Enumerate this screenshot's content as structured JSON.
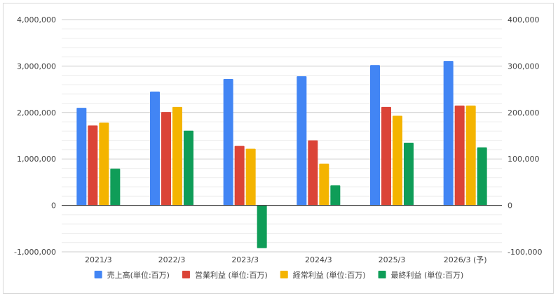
{
  "chart_data": {
    "type": "bar",
    "categories": [
      "2021/3",
      "2022/3",
      "2023/3",
      "2024/3",
      "2025/3",
      "2026/3 (予)"
    ],
    "series": [
      {
        "name": "売上高(単位:百万)",
        "axis": "left",
        "color": "#4285f4",
        "values": [
          2100000,
          2450000,
          2720000,
          2780000,
          3020000,
          3110000
        ]
      },
      {
        "name": "営業利益 (単位:百万)",
        "axis": "right",
        "color": "#db4437",
        "values": [
          172000,
          201000,
          128000,
          140000,
          212000,
          215000
        ]
      },
      {
        "name": "経常利益 (単位:百万)",
        "axis": "right",
        "color": "#f4b400",
        "values": [
          178000,
          212000,
          122000,
          90000,
          193000,
          215000
        ]
      },
      {
        "name": "最終利益 (単位:百万)",
        "axis": "right",
        "color": "#0f9d58",
        "values": [
          79000,
          161000,
          -92000,
          43000,
          135000,
          125000
        ]
      }
    ],
    "y_left": {
      "ylim": [
        -1000000,
        4000000
      ],
      "ticks": [
        "4,000,000",
        "3,000,000",
        "2,000,000",
        "1,000,000",
        "0",
        "-1,000,000"
      ]
    },
    "y_right": {
      "ylim": [
        -100000,
        400000
      ],
      "ticks": [
        "400,000",
        "300,000",
        "200,000",
        "100,000",
        "0",
        "-100,000"
      ]
    },
    "grid": true,
    "legend_position": "bottom"
  }
}
